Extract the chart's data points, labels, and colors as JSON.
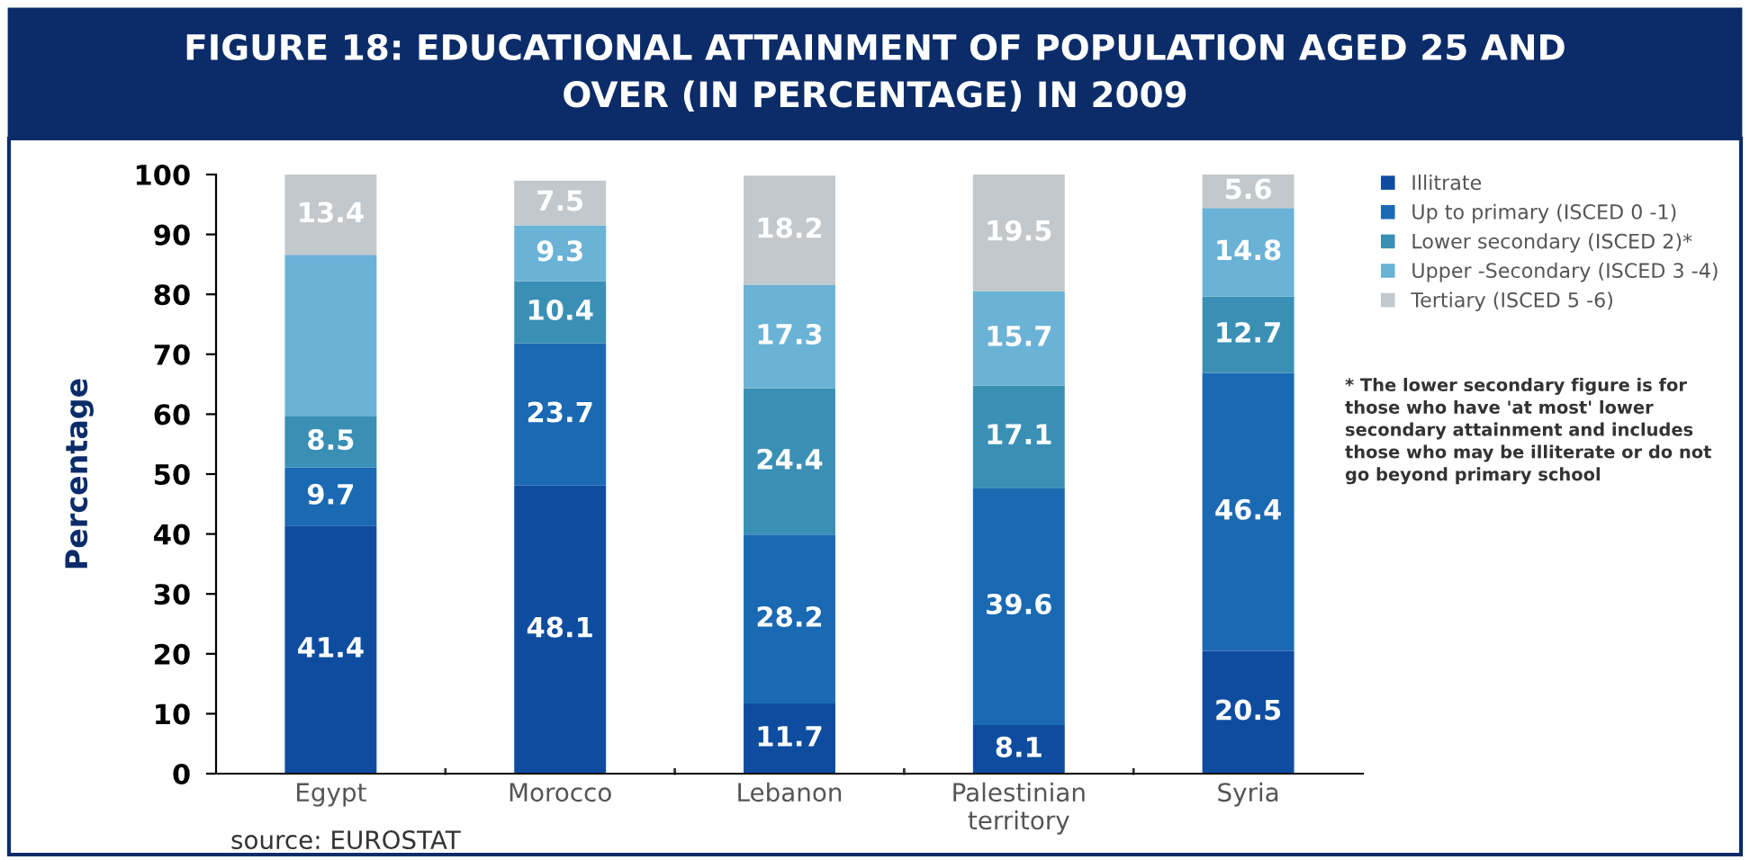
{
  "chart_data": {
    "type": "bar",
    "stacked": true,
    "title": "FIGURE 18: EDUCATIONAL ATTAINMENT OF POPULATION AGED 25 AND\nOVER (IN PERCENTAGE) IN 2009",
    "ylabel": "Percentage",
    "categories": [
      "Egypt",
      "Morocco",
      "Lebanon",
      "Palestinian\nterritory",
      "Syria"
    ],
    "series": [
      {
        "name": "Illitrate",
        "color": "#0e4c9f",
        "values": [
          41.4,
          48.1,
          11.7,
          8.1,
          20.5
        ]
      },
      {
        "name": "Up to primary (ISCED 0 -1)",
        "color": "#1a69b3",
        "values": [
          9.7,
          23.7,
          28.2,
          39.6,
          46.4
        ]
      },
      {
        "name": "Lower secondary (ISCED 2)*",
        "color": "#3a8fb5",
        "values": [
          8.5,
          10.4,
          24.4,
          17.1,
          12.7
        ]
      },
      {
        "name": "Upper -Secondary (ISCED 3 -4)",
        "color": "#6ab2d6",
        "values": [
          27.0,
          9.3,
          17.3,
          15.7,
          14.8
        ],
        "value_labels": [
          null,
          "9.3",
          "17.3",
          "15.7",
          "14.8"
        ]
      },
      {
        "name": "Tertiary (ISCED 5 -6)",
        "color": "#c2c8cb",
        "values": [
          13.4,
          7.5,
          18.2,
          19.5,
          5.6
        ]
      }
    ],
    "ylim": [
      0,
      100
    ],
    "yticks": [
      0,
      10,
      20,
      30,
      40,
      50,
      60,
      70,
      80,
      90,
      100
    ],
    "grid": false,
    "legend": "top right",
    "data_labels": true,
    "annotations": [
      "* The lower secondary figure is for\nthose who have 'at most' lower\nsecondary attainment and includes\nthose who may be illiterate or do not\ngo beyond primary school",
      "source: EUROSTAT"
    ]
  }
}
